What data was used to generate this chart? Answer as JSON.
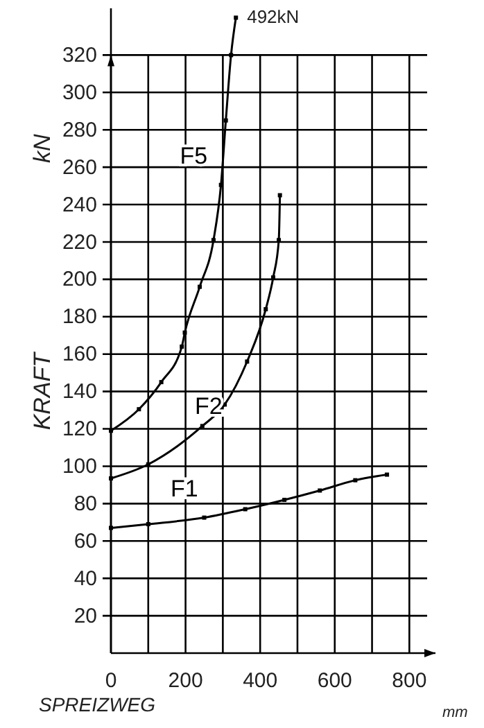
{
  "chart_data": {
    "type": "line",
    "xlabel": "SPREIZWEG",
    "ylabel": "KRAFT",
    "annotations": [
      "kN",
      "mm",
      {
        "text": "492kN",
        "x": 335,
        "y": 340
      }
    ],
    "xlim": [
      0,
      870
    ],
    "ylim": [
      0,
      345
    ],
    "xticks": [
      0,
      {
        "value": 100,
        "label": null
      },
      200,
      {
        "value": 300,
        "label": null
      },
      400,
      {
        "value": 500,
        "label": null
      },
      600,
      {
        "value": 700,
        "label": null
      },
      800
    ],
    "yticks": [
      20,
      40,
      60,
      80,
      100,
      120,
      140,
      160,
      180,
      200,
      220,
      240,
      260,
      280,
      300,
      320
    ],
    "grid": true,
    "marker": "square",
    "line_style": "solid",
    "series": [
      {
        "name": "F1",
        "color": "#000000",
        "x": [
          0,
          100,
          250,
          360,
          465,
          560,
          655,
          740
        ],
        "values": [
          67,
          69,
          72.5,
          77,
          82,
          87,
          92.5,
          95.5
        ]
      },
      {
        "name": "F2",
        "color": "#000000",
        "x": [
          0,
          100,
          245,
          305,
          365,
          415,
          435,
          450,
          453
        ],
        "values": [
          93.5,
          101,
          121.5,
          133,
          156,
          184,
          201,
          221,
          245
        ]
      },
      {
        "name": "F5",
        "color": "#000000",
        "x": [
          0,
          75,
          135,
          190,
          198,
          238,
          275,
          295,
          308,
          322,
          335
        ],
        "values": [
          119,
          130.5,
          145,
          164,
          171.5,
          196,
          221,
          250.5,
          285,
          320,
          340
        ]
      }
    ]
  }
}
